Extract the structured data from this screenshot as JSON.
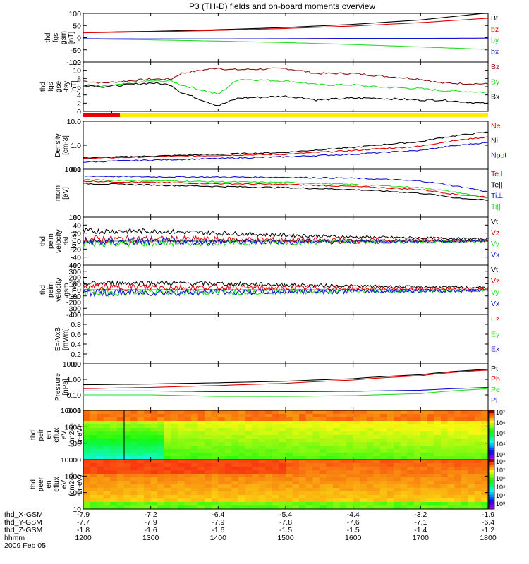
{
  "title": "P3 (TH-D) fields and on-board moments overview",
  "footer": {
    "row_labels": [
      "thd_X-GSM",
      "thd_Y-GSM",
      "thd_Z-GSM",
      "hhmm",
      "2009 Feb 05"
    ],
    "x_gsm": [
      "-7.9",
      "-7.2",
      "-6.4",
      "-5.4",
      "-4.4",
      "-3.2",
      "-1.9"
    ],
    "y_gsm": [
      "-7.7",
      "-7.9",
      "-7.9",
      "-7.8",
      "-7.6",
      "-7.1",
      "-6.4"
    ],
    "z_gsm": [
      "-1.8",
      "-1.6",
      "-1.6",
      "-1.5",
      "-1.5",
      "-1.4",
      "-1.2"
    ],
    "hhmm": [
      "1200",
      "1300",
      "1400",
      "1500",
      "1600",
      "1700",
      "1800"
    ]
  },
  "colors": {
    "black": "#000000",
    "red": "#e00000",
    "green": "#22dd22",
    "blue": "#1010d0",
    "brown": "#8b1010",
    "yellow": "#ffee00",
    "strip_red": "#ee0000"
  },
  "chart_data": [
    {
      "type": "line",
      "ylabel": [
        "thd",
        "fgs",
        "gsm",
        "[nT]"
      ],
      "ylim": [
        -100,
        100
      ],
      "yticks": [
        "100",
        "50",
        "0",
        "-50",
        "-100"
      ],
      "x": [
        1200,
        1300,
        1400,
        1500,
        1600,
        1700,
        1800
      ],
      "series": [
        {
          "name": "Bt",
          "color": "#000000",
          "values": [
            22,
            26,
            33,
            42,
            55,
            73,
            102
          ]
        },
        {
          "name": "bz",
          "color": "#e00000",
          "values": [
            20,
            24,
            30,
            38,
            48,
            62,
            80
          ]
        },
        {
          "name": "by",
          "color": "#22dd22",
          "values": [
            -5,
            -9,
            -14,
            -20,
            -28,
            -38,
            -48
          ]
        },
        {
          "name": "bx",
          "color": "#1010d0",
          "values": [
            -4,
            -5,
            -5,
            -4,
            -3,
            -3,
            -2
          ]
        }
      ]
    },
    {
      "type": "line",
      "ylabel": [
        "thd",
        "fgs",
        "gse",
        "-tsy",
        "[nT]"
      ],
      "ylim": [
        -1,
        12
      ],
      "yticks": [
        "12",
        "10",
        "8",
        "6",
        "4",
        "2",
        "0"
      ],
      "x": [
        1200,
        1230,
        1300,
        1330,
        1345,
        1400,
        1415,
        1430,
        1500,
        1530,
        1545,
        1600,
        1630,
        1700,
        1730,
        1800
      ],
      "series": [
        {
          "name": "Bz",
          "color": "#8b1010",
          "values": [
            7,
            6.5,
            7.5,
            7.5,
            9,
            10.5,
            10,
            10,
            10.3,
            9.5,
            9,
            9,
            8.5,
            7.5,
            6.5,
            6.2
          ]
        },
        {
          "name": "By",
          "color": "#22dd22",
          "values": [
            6,
            5.5,
            7,
            7,
            6,
            3.5,
            5.5,
            7.5,
            7,
            6.5,
            6,
            6,
            5.5,
            5,
            4.5,
            4
          ]
        },
        {
          "name": "Bx",
          "color": "#000000",
          "values": [
            6,
            5.5,
            6.5,
            6,
            4,
            0.5,
            1.5,
            2.5,
            3,
            2.5,
            2,
            2.5,
            2.5,
            2,
            2,
            1
          ]
        }
      ]
    },
    {
      "type": "line",
      "ylabel": [
        "Density",
        "[cm-3]"
      ],
      "ylim": [
        0.1,
        10
      ],
      "log": true,
      "yticks": [
        "10.0",
        "1.0",
        "0.1"
      ],
      "x": [
        1200,
        1300,
        1400,
        1500,
        1600,
        1700,
        1800
      ],
      "series": [
        {
          "name": "Ne",
          "color": "#e00000",
          "values": [
            0.28,
            0.33,
            0.38,
            0.42,
            0.6,
            0.9,
            2.2
          ]
        },
        {
          "name": "Ni",
          "color": "#000000",
          "values": [
            0.3,
            0.35,
            0.42,
            0.5,
            0.8,
            1.4,
            3.5
          ]
        },
        {
          "name": "Npot",
          "color": "#1010d0",
          "values": [
            0.2,
            0.24,
            0.28,
            0.33,
            0.42,
            0.6,
            1.3
          ]
        }
      ]
    },
    {
      "type": "line",
      "ylabel": [
        "mom",
        "[eV]"
      ],
      "ylim": [
        100,
        10000
      ],
      "log": true,
      "yticks": [
        "1000",
        "100"
      ],
      "x": [
        1200,
        1300,
        1400,
        1500,
        1600,
        1700,
        1750,
        1800
      ],
      "series": [
        {
          "name": "Te⊥",
          "color": "#e00000",
          "values": [
            3200,
            2800,
            2500,
            2300,
            1900,
            1400,
            900,
            700
          ]
        },
        {
          "name": "Te||",
          "color": "#000000",
          "values": [
            2500,
            2200,
            1900,
            1700,
            1400,
            1000,
            650,
            500
          ]
        },
        {
          "name": "Ti⊥",
          "color": "#1010d0",
          "values": [
            5200,
            4800,
            4700,
            4600,
            4200,
            3200,
            2000,
            1100
          ]
        },
        {
          "name": "Ti||",
          "color": "#22dd22",
          "values": [
            3600,
            3300,
            3000,
            2800,
            2300,
            1700,
            1100,
            600
          ]
        }
      ]
    },
    {
      "type": "line",
      "ylabel": [
        "thd",
        "peim",
        "velocity",
        "dsl",
        "[km/s]"
      ],
      "ylim": [
        -60,
        60
      ],
      "yticks": [
        "60",
        "40",
        "20",
        "0",
        "-20",
        "-40",
        "-60"
      ],
      "x": [
        1200,
        1300,
        1400,
        1500,
        1600,
        1700,
        1800
      ],
      "series": [
        {
          "name": "Vt",
          "color": "#000000",
          "values": [
            25,
            25,
            20,
            15,
            10,
            8,
            5
          ]
        },
        {
          "name": "Vz",
          "color": "#e00000",
          "values": [
            5,
            5,
            4,
            3,
            2,
            2,
            1
          ]
        },
        {
          "name": "Vy",
          "color": "#22dd22",
          "values": [
            -5,
            -5,
            -4,
            -3,
            -2,
            -2,
            -1
          ]
        },
        {
          "name": "Vx",
          "color": "#1010d0",
          "values": [
            -2,
            -2,
            -2,
            -1,
            -1,
            -1,
            0
          ]
        }
      ]
    },
    {
      "type": "line",
      "ylabel": [
        "thd",
        "peim",
        "velocity",
        "gsm",
        "[km/s]"
      ],
      "ylim": [
        -400,
        400
      ],
      "yticks": [
        "400",
        "300",
        "200",
        "100",
        "0",
        "-100",
        "-200",
        "-300",
        "-400"
      ],
      "x": [
        1200,
        1300,
        1400,
        1500,
        1600,
        1700,
        1800
      ],
      "series": [
        {
          "name": "Vt",
          "color": "#000000",
          "values": [
            100,
            110,
            100,
            80,
            60,
            45,
            35
          ]
        },
        {
          "name": "Vz",
          "color": "#e00000",
          "values": [
            40,
            40,
            35,
            30,
            20,
            15,
            10
          ]
        },
        {
          "name": "Vy",
          "color": "#22dd22",
          "values": [
            -40,
            -40,
            -35,
            -30,
            -25,
            -20,
            -10
          ]
        },
        {
          "name": "Vx",
          "color": "#1010d0",
          "values": [
            -50,
            -45,
            -40,
            -30,
            -25,
            -20,
            -15
          ]
        }
      ]
    },
    {
      "type": "line",
      "ylabel": [
        "E=-VxB",
        "[mV/m]"
      ],
      "ylim": [
        0,
        1
      ],
      "yticks": [
        "1.0",
        "0.8",
        "0.6",
        "0.4",
        "0.2",
        "0.0"
      ],
      "x": [],
      "series": [
        {
          "name": "Ez",
          "color": "#e00000",
          "values": []
        },
        {
          "name": "Ey",
          "color": "#22dd22",
          "values": []
        },
        {
          "name": "Ex",
          "color": "#1010d0",
          "values": []
        }
      ]
    },
    {
      "type": "line",
      "ylabel": [
        "Pressure",
        "[nPa]"
      ],
      "ylim": [
        0.01,
        10
      ],
      "log": true,
      "yticks": [
        "10.00",
        "1.00",
        "0.10",
        "0.01"
      ],
      "x": [
        1200,
        1300,
        1400,
        1500,
        1600,
        1700,
        1800
      ],
      "series": [
        {
          "name": "Pt",
          "color": "#000000",
          "values": [
            0.45,
            0.5,
            0.6,
            0.75,
            1.1,
            2.0,
            4.5
          ]
        },
        {
          "name": "Pb",
          "color": "#e00000",
          "values": [
            0.25,
            0.3,
            0.4,
            0.55,
            0.9,
            1.7,
            4.0
          ]
        },
        {
          "name": "Pe",
          "color": "#22dd22",
          "values": [
            0.1,
            0.1,
            0.08,
            0.08,
            0.09,
            0.12,
            0.25
          ]
        },
        {
          "name": "Pi",
          "color": "#1010d0",
          "values": [
            0.18,
            0.18,
            0.16,
            0.16,
            0.17,
            0.2,
            0.3
          ]
        }
      ]
    },
    {
      "type": "heatmap",
      "ylabel": [
        "thd",
        "peir",
        "en",
        "eflux",
        "eV",
        "(cm2-s-",
        "sr-eV)"
      ],
      "ylim": [
        8,
        30000
      ],
      "log": true,
      "yticks": [
        "10000",
        "1000",
        "100",
        "10"
      ],
      "colorbar_ticks": [
        "10⁷",
        "10⁶",
        "10⁵",
        "10⁴",
        "10³"
      ]
    },
    {
      "type": "heatmap",
      "ylabel": [
        "thd",
        "peer",
        "en",
        "eflux",
        "eV",
        "(cm2-s-",
        "sr-eV)"
      ],
      "ylim": [
        8,
        30000
      ],
      "log": true,
      "yticks": [
        "10000",
        "1000",
        "100",
        "10"
      ],
      "colorbar_ticks": [
        "10⁸",
        "10⁷",
        "10⁶",
        "10⁵",
        "10⁴",
        "10³"
      ]
    }
  ]
}
